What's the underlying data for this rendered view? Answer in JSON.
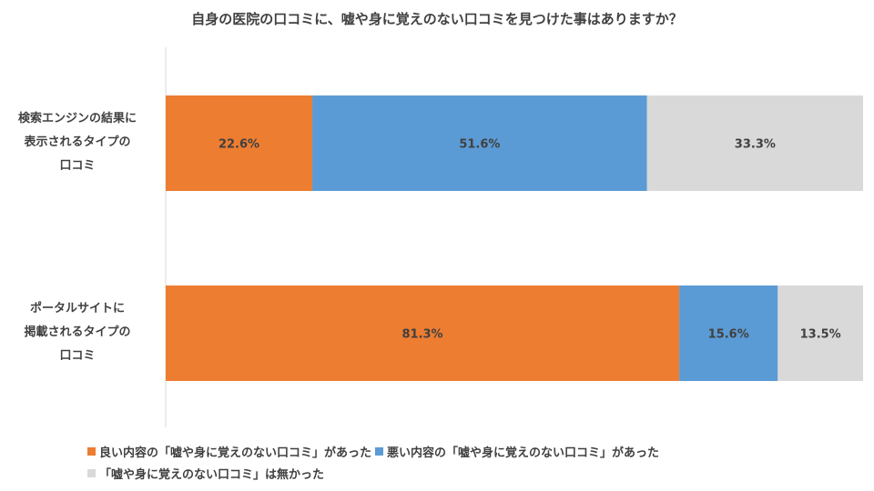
{
  "chart_data": {
    "type": "bar",
    "stacked": "100%",
    "orientation": "horizontal",
    "title": "自身の医院の口コミに、嘘や身に覚えのない口コミを見つけた事はありますか？",
    "categories": [
      [
        "検索エンジンの結果に",
        "表示されるタイプの",
        "口コミ"
      ],
      [
        "ポータルサイトに",
        "掲載されるタイプの",
        "口コミ"
      ]
    ],
    "series": [
      {
        "name": "良い内容の「嘘や身に覚えのない口コミ」があった",
        "color": "#ED7D31",
        "values": [
          22.6,
          81.3
        ],
        "labels": [
          "22.6%",
          "81.3%"
        ]
      },
      {
        "name": "悪い内容の「嘘や身に覚えのない口コミ」があった",
        "color": "#5B9BD5",
        "values": [
          51.6,
          15.6
        ],
        "labels": [
          "51.6%",
          "15.6%"
        ]
      },
      {
        "name": "「嘘や身に覚えのない口コミ」は無かった",
        "color": "#D9D9D9",
        "values": [
          33.3,
          13.5
        ],
        "labels": [
          "33.3%",
          "13.5%"
        ]
      }
    ],
    "legend_position": "bottom",
    "grid": false
  }
}
